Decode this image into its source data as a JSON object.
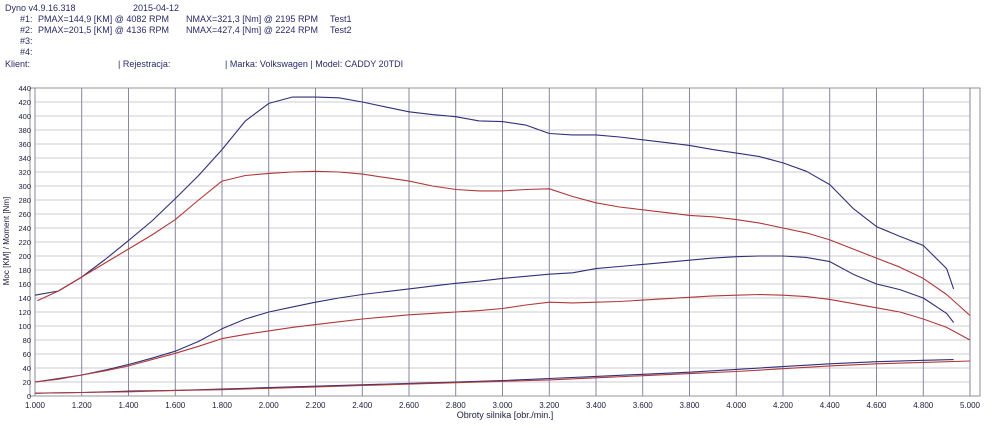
{
  "header": {
    "app_version": "Dyno v4.9.16.318",
    "date": "2015-04-12",
    "runs": [
      {
        "label": "#1:",
        "pmax": "PMAX=144,9 [KM] @ 4082 RPM",
        "nmax": "NMAX=321,3 [Nm] @ 2195 RPM",
        "name": "Test1"
      },
      {
        "label": "#2:",
        "pmax": "PMAX=201,5 [KM] @ 4136 RPM",
        "nmax": "NMAX=427,4 [Nm] @ 2224 RPM",
        "name": "Test2"
      },
      {
        "label": "#3:",
        "pmax": "",
        "nmax": "",
        "name": ""
      },
      {
        "label": "#4:",
        "pmax": "",
        "nmax": "",
        "name": ""
      }
    ],
    "client_label": "Klient:",
    "registration_label": "| Rejestracja:",
    "make_model": "| Marka: Volkswagen | Model: CADDY 20TDI"
  },
  "chart_data": {
    "type": "line",
    "xlabel": "Obroty silnika [obr./min.]",
    "ylabel": "Moc [KM] / Moment [Nm]",
    "xlim": [
      1000,
      5000
    ],
    "ylim": [
      0,
      440
    ],
    "x_ticks": [
      "1.000",
      "1.200",
      "1.400",
      "1.600",
      "1.800",
      "2.000",
      "2.200",
      "2.400",
      "2.600",
      "2.800",
      "3.000",
      "3.200",
      "3.400",
      "3.600",
      "3.800",
      "4.000",
      "4.200",
      "4.400",
      "4.600",
      "4.800",
      "5.000"
    ],
    "y_ticks": [
      "0",
      "20",
      "40",
      "60",
      "80",
      "100",
      "120",
      "140",
      "160",
      "180",
      "200",
      "220",
      "240",
      "260",
      "280",
      "300",
      "320",
      "340",
      "360",
      "380",
      "400",
      "420",
      "440"
    ],
    "grid": true,
    "colors": {
      "test1": "#b03838",
      "test2": "#303078",
      "loss": "#6a2a7a"
    },
    "series": [
      {
        "name": "Test2",
        "color": "#303078",
        "x": [
          1000,
          1100,
          1200,
          1300,
          1400,
          1500,
          1600,
          1700,
          1800,
          1900,
          2000,
          2100,
          2200,
          2300,
          2400,
          2500,
          2600,
          2700,
          2800,
          2900,
          3000,
          3100,
          3200,
          3300,
          3400,
          3500,
          3600,
          3700,
          3800,
          3900,
          4000,
          4100,
          4200,
          4300,
          4400,
          4500,
          4600,
          4700,
          4800,
          4900,
          4930
        ],
        "y": [
          144,
          150,
          170,
          195,
          222,
          250,
          282,
          315,
          352,
          393,
          418,
          427,
          427,
          426,
          420,
          413,
          406,
          402,
          399,
          393,
          392,
          387,
          375,
          373,
          373,
          370,
          366,
          362,
          358,
          352,
          347,
          342,
          333,
          321,
          302,
          268,
          242,
          228,
          215,
          182,
          153
        ]
      },
      {
        "name": "Test1",
        "color": "#b03838",
        "x": [
          1010,
          1100,
          1200,
          1300,
          1400,
          1500,
          1600,
          1700,
          1800,
          1900,
          2000,
          2100,
          2200,
          2300,
          2400,
          2500,
          2600,
          2700,
          2800,
          2900,
          3000,
          3100,
          3200,
          3300,
          3400,
          3500,
          3600,
          3700,
          3800,
          3900,
          4000,
          4100,
          4200,
          4300,
          4400,
          4500,
          4600,
          4700,
          4800,
          4900,
          5000
        ],
        "y": [
          136,
          150,
          170,
          190,
          210,
          230,
          252,
          280,
          307,
          315,
          318,
          320,
          321,
          320,
          317,
          312,
          307,
          300,
          295,
          293,
          293,
          295,
          296,
          285,
          276,
          270,
          266,
          262,
          258,
          256,
          252,
          247,
          240,
          233,
          223,
          210,
          197,
          184,
          168,
          145,
          115
        ]
      },
      {
        "name": "",
        "color": "#303078",
        "x": [
          1000,
          1100,
          1200,
          1300,
          1400,
          1500,
          1600,
          1700,
          1800,
          1900,
          2000,
          2100,
          2200,
          2300,
          2400,
          2500,
          2600,
          2700,
          2800,
          2900,
          3000,
          3100,
          3200,
          3300,
          3400,
          3500,
          3600,
          3700,
          3800,
          3900,
          4000,
          4100,
          4200,
          4300,
          4400,
          4500,
          4600,
          4700,
          4800,
          4900,
          4930
        ],
        "y": [
          20,
          25,
          30,
          37,
          45,
          54,
          64,
          78,
          96,
          110,
          120,
          127,
          134,
          140,
          145,
          149,
          153,
          157,
          161,
          164,
          168,
          171,
          174,
          176,
          182,
          185,
          188,
          191,
          194,
          197,
          199,
          200,
          200,
          198,
          192,
          174,
          160,
          152,
          140,
          118,
          105
        ]
      },
      {
        "name": "",
        "color": "#b03838",
        "x": [
          1000,
          1100,
          1200,
          1300,
          1400,
          1500,
          1600,
          1700,
          1800,
          1900,
          2000,
          2100,
          2200,
          2300,
          2400,
          2500,
          2600,
          2700,
          2800,
          2900,
          3000,
          3100,
          3200,
          3300,
          3400,
          3500,
          3600,
          3700,
          3800,
          3900,
          4000,
          4100,
          4200,
          4300,
          4400,
          4500,
          4600,
          4700,
          4800,
          4900,
          5000
        ],
        "y": [
          20,
          24,
          30,
          36,
          43,
          52,
          61,
          71,
          82,
          88,
          93,
          98,
          102,
          106,
          110,
          113,
          116,
          118,
          120,
          122,
          125,
          130,
          134,
          133,
          134,
          135,
          137,
          139,
          141,
          143,
          144,
          145,
          144,
          142,
          138,
          132,
          126,
          120,
          110,
          98,
          80
        ]
      },
      {
        "name": "",
        "color": "#303078",
        "x": [
          1000,
          1200,
          1400,
          1600,
          1800,
          2000,
          2200,
          2400,
          2600,
          2800,
          3000,
          3200,
          3400,
          3600,
          3800,
          4000,
          4200,
          4400,
          4600,
          4800,
          4930
        ],
        "y": [
          4,
          5,
          7,
          8,
          10,
          12,
          14,
          16,
          18,
          20,
          22,
          25,
          28,
          31,
          34,
          38,
          42,
          46,
          49,
          51,
          52
        ]
      },
      {
        "name": "",
        "color": "#b03838",
        "x": [
          1000,
          1200,
          1400,
          1600,
          1800,
          2000,
          2200,
          2400,
          2600,
          2800,
          3000,
          3200,
          3400,
          3600,
          3800,
          4000,
          4200,
          4400,
          4600,
          4800,
          5000
        ],
        "y": [
          4,
          5,
          6,
          8,
          9,
          11,
          13,
          15,
          17,
          19,
          21,
          23,
          26,
          29,
          32,
          35,
          39,
          43,
          46,
          48,
          50
        ]
      }
    ]
  }
}
